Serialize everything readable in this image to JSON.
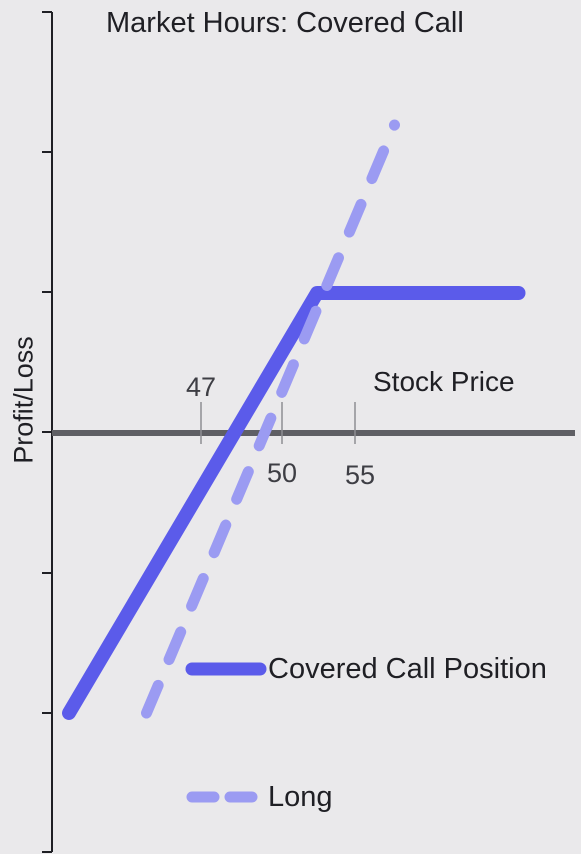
{
  "chart_data": {
    "type": "line",
    "title": "Market Hours: Covered Call",
    "xlabel": "Stock Price",
    "ylabel": "Profit/Loss",
    "xlim": [
      40,
      70
    ],
    "ylim": [
      -10,
      10
    ],
    "ticks": [
      {
        "value": 47,
        "label": "47",
        "label_position": "above"
      },
      {
        "value": 50,
        "label": "50",
        "label_position": "below"
      },
      {
        "value": 55,
        "label": "55",
        "label_position": "below"
      }
    ],
    "series": [
      {
        "name": "Covered Call Position",
        "style": "solid",
        "color": "#5B5BEA",
        "x": [
          41,
          57,
          70
        ],
        "y": [
          -10,
          5,
          5
        ]
      },
      {
        "name": "Long",
        "style": "dashed",
        "color": "#9B9BF2",
        "x": [
          46,
          62
        ],
        "y": [
          -10,
          11
        ]
      }
    ],
    "legend": {
      "placement": "bottom-right"
    }
  }
}
